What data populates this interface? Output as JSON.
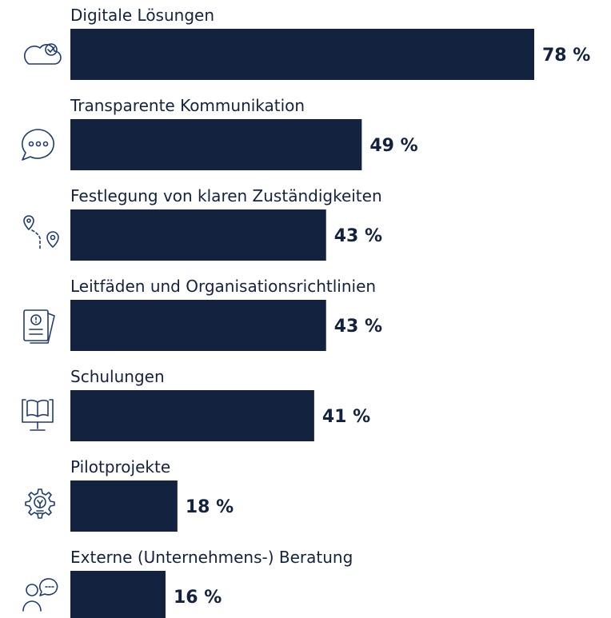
{
  "chart_data": {
    "type": "bar",
    "orientation": "horizontal",
    "categories": [
      "Digitale Lösungen",
      "Transparente Kommunikation",
      "Festlegung von klaren Zuständigkeiten",
      "Leitfäden und Organisationsrichtlinien",
      "Schulungen",
      "Pilotprojekte",
      "Externe (Unternehmens-) Beratung"
    ],
    "values": [
      78,
      49,
      43,
      43,
      41,
      18,
      16
    ],
    "value_labels": [
      "78 %",
      "49 %",
      "43 %",
      "43 %",
      "41 %",
      "18 %",
      "16 %"
    ],
    "color": "#13233f"
  }
}
